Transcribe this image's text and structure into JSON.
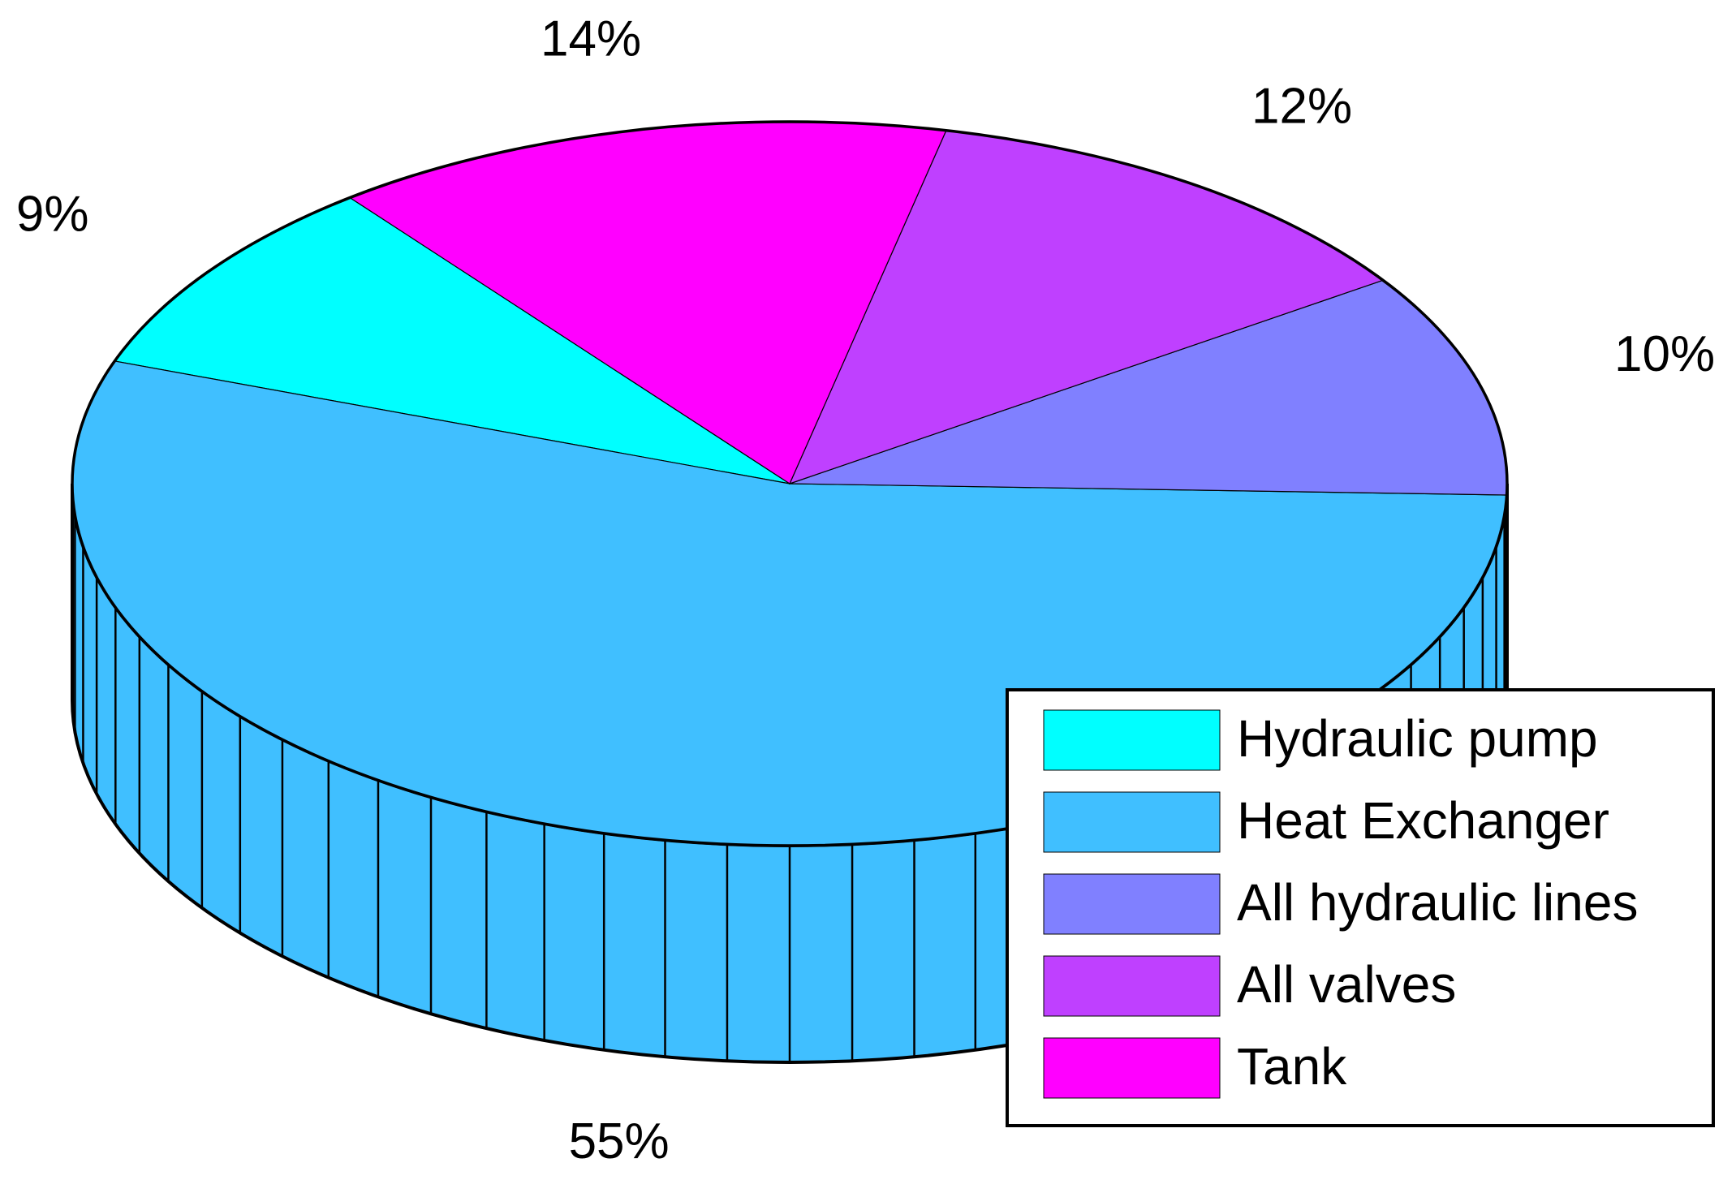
{
  "chart_data": {
    "type": "pie",
    "categories": [
      "Hydraulic pump",
      "Heat Exchanger",
      "All hydraulic lines",
      "All valves",
      "Tank"
    ],
    "values": [
      9,
      55,
      10,
      12,
      14
    ],
    "value_labels": [
      "9%",
      "55%",
      "10%",
      "12%",
      "14%"
    ],
    "colors": [
      "#00ffff",
      "#40bfff",
      "#8080ff",
      "#bf40ff",
      "#ff00ff"
    ],
    "legend": "bottom-right"
  }
}
